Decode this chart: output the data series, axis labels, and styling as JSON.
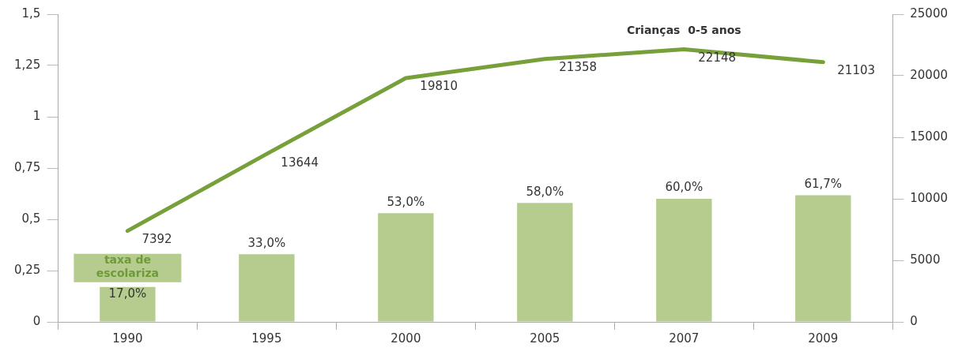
{
  "chart_data": {
    "type": "bar",
    "categories": [
      "1990",
      "1995",
      "2000",
      "2005",
      "2007",
      "2009"
    ],
    "series": [
      {
        "name": "taxa de escolariza",
        "color": "#b5cc8e",
        "values": [
          0.17,
          0.33,
          0.53,
          0.58,
          0.6,
          0.617
        ],
        "value_labels": [
          "17,0%",
          "33,0%",
          "53,0%",
          "58,0%",
          "60,0%",
          "61,7%"
        ]
      },
      {
        "type": "line",
        "name": "Crianças  0-5 anos",
        "color": "#77a03a",
        "axis": "y2",
        "values": [
          7392,
          13644,
          19810,
          21358,
          22148,
          21103
        ],
        "value_labels": [
          "7392",
          "13644",
          "19810",
          "21358",
          "22148",
          "21103"
        ]
      }
    ],
    "ylim": [
      0,
      1.5
    ],
    "yticks": [
      0,
      {
        "value": 0.25,
        "label": "0,25"
      },
      {
        "value": 0.5,
        "label": "0,5"
      },
      {
        "value": 0.75,
        "label": "0,75"
      },
      1,
      {
        "value": 1.25,
        "label": "1,25"
      },
      {
        "value": 1.5,
        "label": "1,5"
      }
    ],
    "y2lim": [
      0,
      25000
    ],
    "y2ticks": [
      0,
      5000,
      10000,
      15000,
      20000,
      25000
    ],
    "grid": false,
    "legend": false,
    "marker": "none",
    "line_style": "solid"
  }
}
